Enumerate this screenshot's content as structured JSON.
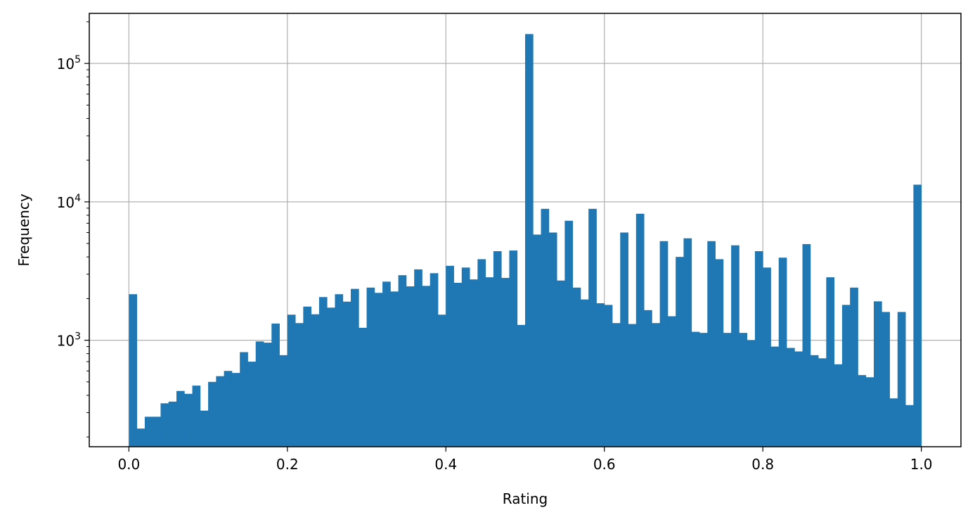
{
  "chart_data": {
    "type": "bar",
    "title": "",
    "xlabel": "Rating",
    "ylabel": "Frequency",
    "yscale": "log",
    "xlim": [
      -0.05,
      1.05
    ],
    "ylim": [
      170,
      230000
    ],
    "grid": true,
    "color": "#1f77b4",
    "bin_width": 0.01,
    "x_ticks": [
      {
        "value": 0.0,
        "label": "0.0"
      },
      {
        "value": 0.2,
        "label": "0.2"
      },
      {
        "value": 0.4,
        "label": "0.4"
      },
      {
        "value": 0.6,
        "label": "0.6"
      },
      {
        "value": 0.8,
        "label": "0.8"
      },
      {
        "value": 1.0,
        "label": "1.0"
      }
    ],
    "y_ticks": [
      {
        "value": 1000,
        "base": "10",
        "exp": "3"
      },
      {
        "value": 10000,
        "base": "10",
        "exp": "4"
      },
      {
        "value": 100000,
        "base": "10",
        "exp": "5"
      }
    ],
    "bins_start": [
      0.0,
      0.01,
      0.02,
      0.03,
      0.04,
      0.05,
      0.06,
      0.07,
      0.08,
      0.09,
      0.1,
      0.11,
      0.12,
      0.13,
      0.14,
      0.15,
      0.16,
      0.17,
      0.18,
      0.19,
      0.2,
      0.21,
      0.22,
      0.23,
      0.24,
      0.25,
      0.26,
      0.27,
      0.28,
      0.29,
      0.3,
      0.31,
      0.32,
      0.33,
      0.34,
      0.35,
      0.36,
      0.37,
      0.38,
      0.39,
      0.4,
      0.41,
      0.42,
      0.43,
      0.44,
      0.45,
      0.46,
      0.47,
      0.48,
      0.49,
      0.5,
      0.51,
      0.52,
      0.53,
      0.54,
      0.55,
      0.56,
      0.57,
      0.58,
      0.59,
      0.6,
      0.61,
      0.62,
      0.63,
      0.64,
      0.65,
      0.66,
      0.67,
      0.68,
      0.69,
      0.7,
      0.71,
      0.72,
      0.73,
      0.74,
      0.75,
      0.76,
      0.77,
      0.78,
      0.79,
      0.8,
      0.81,
      0.82,
      0.83,
      0.84,
      0.85,
      0.86,
      0.87,
      0.88,
      0.89,
      0.9,
      0.91,
      0.92,
      0.93,
      0.94,
      0.95,
      0.96,
      0.97,
      0.98,
      0.99
    ],
    "values": [
      2150,
      230,
      280,
      280,
      350,
      360,
      430,
      410,
      470,
      310,
      500,
      550,
      600,
      580,
      820,
      700,
      980,
      960,
      1320,
      780,
      1530,
      1330,
      1750,
      1540,
      2050,
      1720,
      2150,
      1900,
      2350,
      1230,
      2400,
      2200,
      2650,
      2250,
      2950,
      2450,
      3250,
      2470,
      3050,
      1530,
      3450,
      2600,
      3350,
      2750,
      3850,
      2850,
      4400,
      2820,
      4450,
      1290,
      163000,
      5800,
      8900,
      6000,
      2700,
      7300,
      2400,
      1970,
      8900,
      1850,
      1800,
      1330,
      6000,
      1310,
      8200,
      1650,
      1330,
      5200,
      1490,
      4000,
      5450,
      1150,
      1130,
      5200,
      3850,
      1130,
      4850,
      1130,
      1000,
      4400,
      3350,
      900,
      3950,
      880,
      830,
      4950,
      780,
      740,
      2850,
      670,
      1800,
      2400,
      560,
      540,
      1910,
      1600,
      380,
      1600,
      340,
      13300
    ]
  }
}
